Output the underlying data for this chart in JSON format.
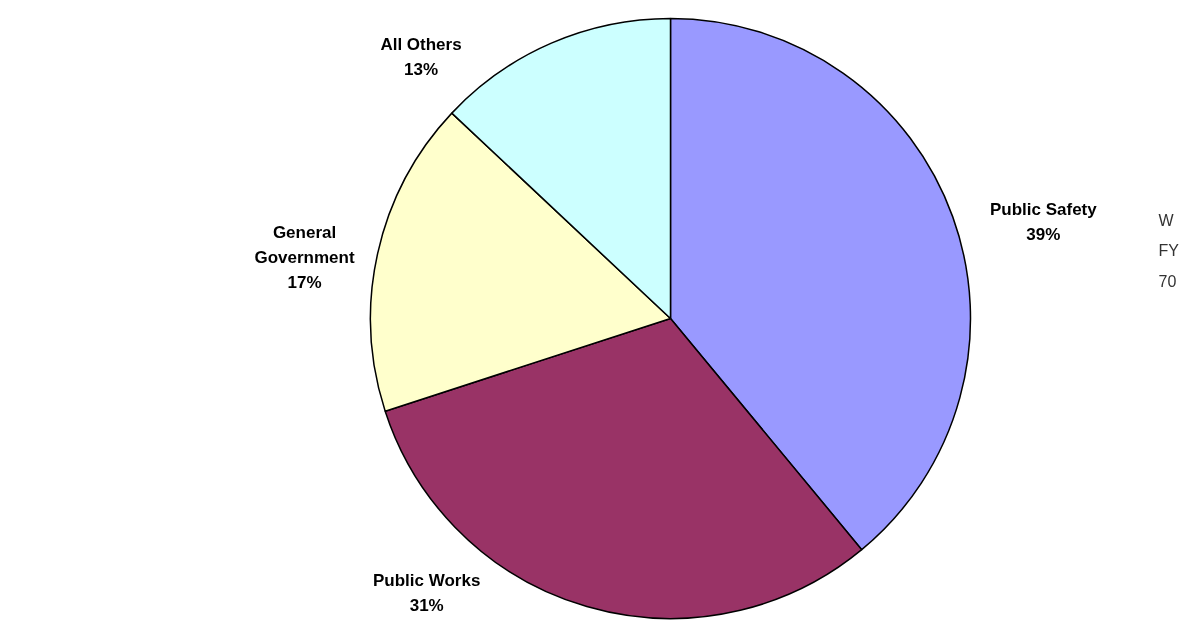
{
  "chart_data": {
    "type": "pie",
    "categories": [
      "Public Safety",
      "Public Works",
      "General Government",
      "All Others"
    ],
    "values": [
      39,
      31,
      17,
      13
    ],
    "value_labels": [
      "39%",
      "31%",
      "17%",
      "13%"
    ],
    "colors": [
      "#9999ff",
      "#993366",
      "#ffffcc",
      "#ccffff"
    ],
    "annotations": [
      "W",
      "FY",
      "70"
    ]
  }
}
